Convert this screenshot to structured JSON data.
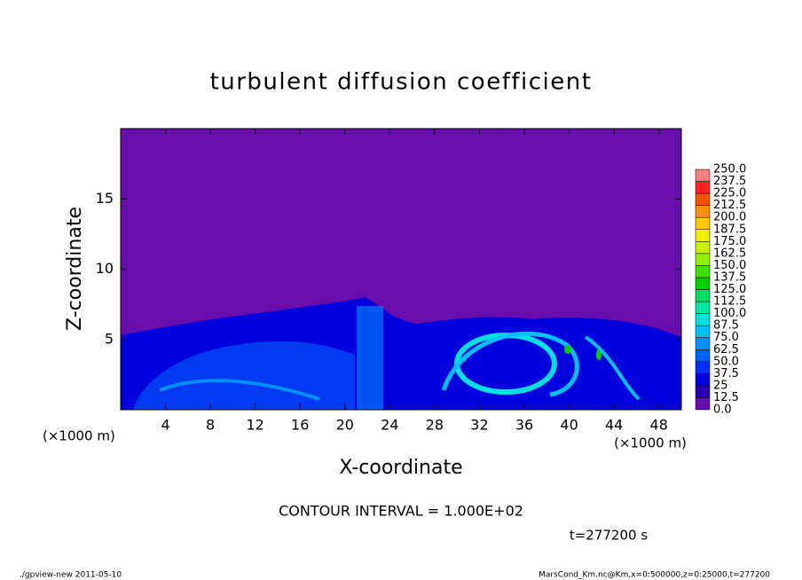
{
  "chart_data": {
    "type": "contour",
    "title": "turbulent diffusion coefficient",
    "xlabel": "X-coordinate",
    "ylabel": "Z-coordinate",
    "xunit": "(×1000 m)",
    "yunit": "(×1000 m)",
    "xlim": [
      0,
      50
    ],
    "ylim": [
      0,
      20
    ],
    "xticks": [
      4,
      8,
      12,
      16,
      20,
      24,
      28,
      32,
      36,
      40,
      44,
      48
    ],
    "yticks": [
      5,
      10,
      15
    ],
    "colorbar": {
      "levels": [
        {
          "value": 0,
          "label": "0.0"
        },
        12.5,
        25,
        37.5,
        {
          "value": 50,
          "label": "50.0"
        },
        62.5,
        {
          "value": 75,
          "label": "75.0"
        },
        87.5,
        {
          "value": 100,
          "label": "100.0"
        },
        112.5,
        {
          "value": 125,
          "label": "125.0"
        },
        137.5,
        {
          "value": 150,
          "label": "150.0"
        },
        162.5,
        {
          "value": 175,
          "label": "175.0"
        },
        187.5,
        {
          "value": 200,
          "label": "200.0"
        },
        212.5,
        {
          "value": 225,
          "label": "225.0"
        },
        237.5,
        {
          "value": 250,
          "label": "250.0"
        }
      ],
      "colors": [
        "#6a0dad",
        "#2a00b4",
        "#0000dc",
        "#0030ff",
        "#0060ff",
        "#0090ff",
        "#00c0ff",
        "#00e0e0",
        "#00e8a0",
        "#00e060",
        "#00d000",
        "#40e000",
        "#90f000",
        "#c8f000",
        "#f0f000",
        "#ffc800",
        "#ff9000",
        "#ff5000",
        "#ff2020",
        "#f08080"
      ]
    },
    "annotation": "CONTOUR INTERVAL = 1.000E+02",
    "time": "t=277200 s",
    "footer_left": "./gpview-new   2011-05-10",
    "footer_right": "MarsCond_Km.nc@Km,x=0:500000,z=0:25000,t=277200"
  }
}
